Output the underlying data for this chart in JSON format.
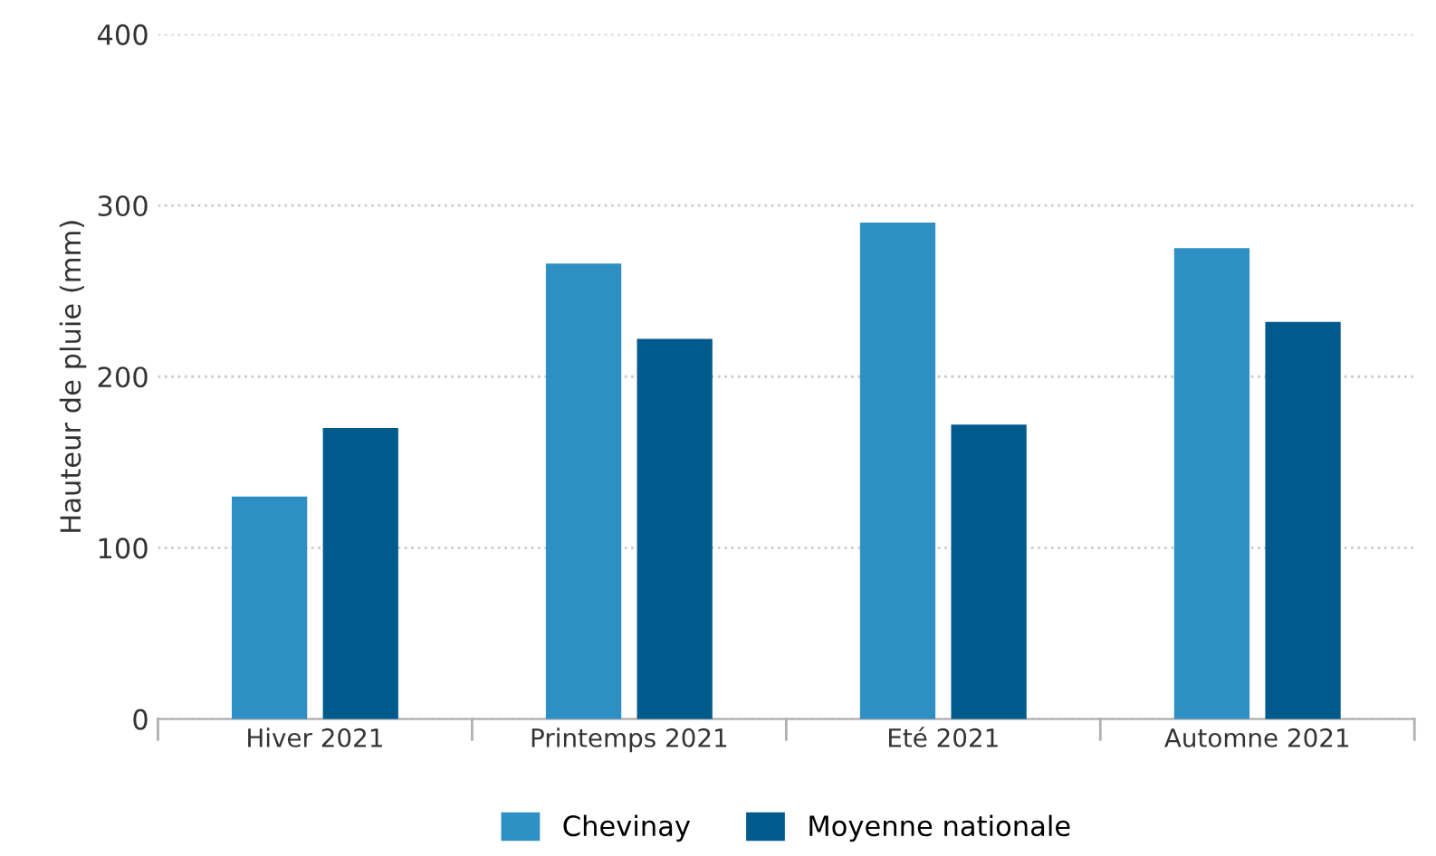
{
  "chart_data": {
    "type": "bar",
    "ylabel": "Hauteur de pluie (mm)",
    "categories": [
      "Hiver 2021",
      "Printemps 2021",
      "Eté 2021",
      "Automne 2021"
    ],
    "series": [
      {
        "name": "Chevinay",
        "color": "#2e8fc5",
        "values": [
          130,
          266,
          290,
          275
        ]
      },
      {
        "name": "Moyenne nationale",
        "color": "#005a8c",
        "values": [
          170,
          222,
          172,
          232
        ]
      }
    ],
    "ylim": [
      0,
      400
    ],
    "yticks": [
      0,
      100,
      200,
      300,
      400
    ],
    "grid": "y",
    "legend": "bottom"
  }
}
